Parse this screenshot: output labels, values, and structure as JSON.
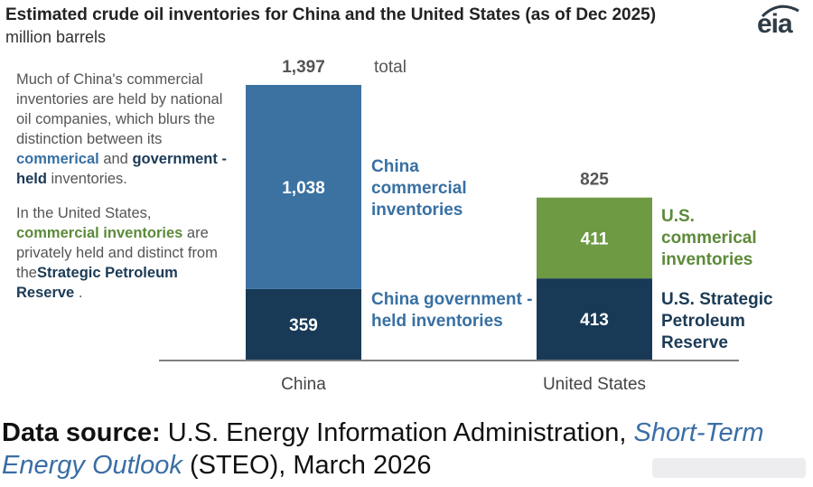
{
  "header": {
    "title": "Estimated crude oil inventories for China and the United States (as of Dec 2025)",
    "subtitle": "million barrels",
    "logo": "eia"
  },
  "notes": {
    "p1_pre": "Much of China's commercial inventories are held by national oil companies, which blurs the distinction between its",
    "p1_commercial": "commerical",
    "p1_and": "and",
    "p1_government": "government -held",
    "p1_post": "inventories.",
    "p2_pre": "In the United States,",
    "p2_commercial": "commercial inventories",
    "p2_mid": "are privately held and distinct from the",
    "p2_spr": "Strategic Petroleum Reserve",
    "p2_post": "."
  },
  "labels": {
    "china_commercial": "China commercial inventories",
    "china_government": "China government -held inventories",
    "us_commercial": "U.S. commerical inventories",
    "us_spr": "U.S. Strategic Petroleum Reserve",
    "total_word": "total"
  },
  "source": {
    "label": "Data source:",
    "text1": "U.S. Energy Information Administration,",
    "italic": "Short-Term Energy Outlook",
    "text2": "(STEO), March 2026"
  },
  "chart_data": {
    "type": "bar",
    "stacked": true,
    "categories": [
      "China",
      "United States"
    ],
    "series": [
      {
        "values": [
          359,
          413
        ],
        "colors": [
          "#183a56",
          "#183a56"
        ]
      },
      {
        "values": [
          1038,
          411
        ],
        "colors": [
          "#3b72a2",
          "#6e9a43"
        ]
      }
    ],
    "totals": [
      "1,397",
      "825"
    ],
    "segment_labels": [
      [
        "359",
        "1,038"
      ],
      [
        "413",
        "411"
      ]
    ],
    "ylim": [
      0,
      1397
    ]
  }
}
